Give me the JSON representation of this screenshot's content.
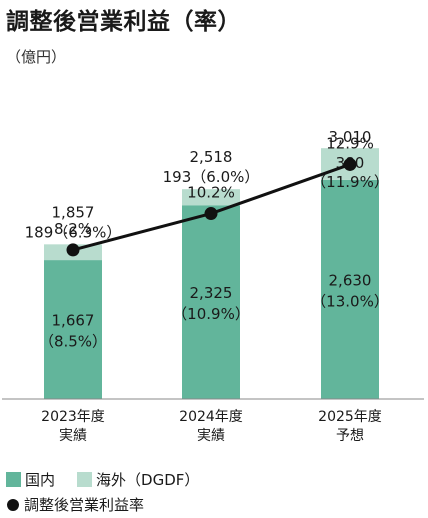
{
  "title": "調整後営業利益（率）",
  "unit": "（億円）",
  "colors": {
    "domestic": "#62b59b",
    "overseas": "#b8dcce",
    "line": "#111111"
  },
  "legend": {
    "domestic": "国内",
    "overseas": "海外（DGDF）",
    "rate": "調整後営業利益率"
  },
  "chart_data": {
    "type": "bar",
    "stacked": true,
    "categories": [
      "2023年度\n実績",
      "2024年度\n実績",
      "2025年度\n予想"
    ],
    "category_lines": [
      [
        "2023年度",
        "実績"
      ],
      [
        "2024年度",
        "実績"
      ],
      [
        "2025年度",
        "予想"
      ]
    ],
    "ylim": [
      0,
      3600
    ],
    "series": [
      {
        "name": "国内",
        "values": [
          1667,
          2325,
          2630
        ],
        "labels": [
          [
            "1,667",
            "（8.5%）"
          ],
          [
            "2,325",
            "（10.9%）"
          ],
          [
            "2,630",
            "（13.0%）"
          ]
        ]
      },
      {
        "name": "海外（DGDF）",
        "values": [
          189,
          193,
          380
        ],
        "labels": [
          "189（6.3%）",
          "193（6.0%）",
          [
            "380",
            "（11.9%）"
          ]
        ]
      }
    ],
    "totals": [
      1857,
      2518,
      3010
    ],
    "total_labels": [
      "1,857",
      "2,518",
      "3,010"
    ],
    "line": {
      "name": "調整後営業利益率",
      "values": [
        8.2,
        10.2,
        12.9
      ],
      "labels": [
        "8.2%",
        "10.2%",
        "12.9%"
      ],
      "ylim": [
        0,
        16.5
      ]
    }
  }
}
